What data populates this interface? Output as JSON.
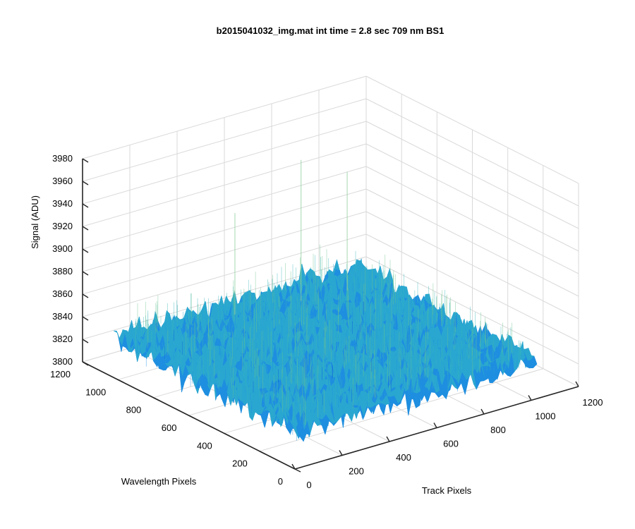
{
  "chart_data": {
    "type": "surface",
    "title": "b2015041032_img.mat int time = 2.8 sec  709 nm BS1",
    "xlabel": "Track Pixels",
    "ylabel": "Wavelength Pixels",
    "zlabel": "Signal (ADU)",
    "xlim": [
      0,
      1200
    ],
    "ylim": [
      0,
      1200
    ],
    "zlim": [
      3800,
      3980
    ],
    "x_ticks": [
      "0",
      "200",
      "400",
      "600",
      "800",
      "1000",
      "1200"
    ],
    "y_ticks": [
      "0",
      "200",
      "400",
      "600",
      "800",
      "1000",
      "1200"
    ],
    "z_ticks": [
      "3800",
      "3820",
      "3840",
      "3860",
      "3880",
      "3900",
      "3920",
      "3940",
      "3960",
      "3980"
    ],
    "surface_extent": {
      "x": [
        0,
        1024
      ],
      "y": [
        0,
        1024
      ]
    },
    "signal_mean": 3835,
    "signal_noise_range": [
      3810,
      3870
    ],
    "signal_spike_max": 3960,
    "grid": true,
    "colormap": [
      "#0a5fe0",
      "#1e8ee0",
      "#2aa7d0",
      "#39b6b8",
      "#6cc38f"
    ]
  }
}
